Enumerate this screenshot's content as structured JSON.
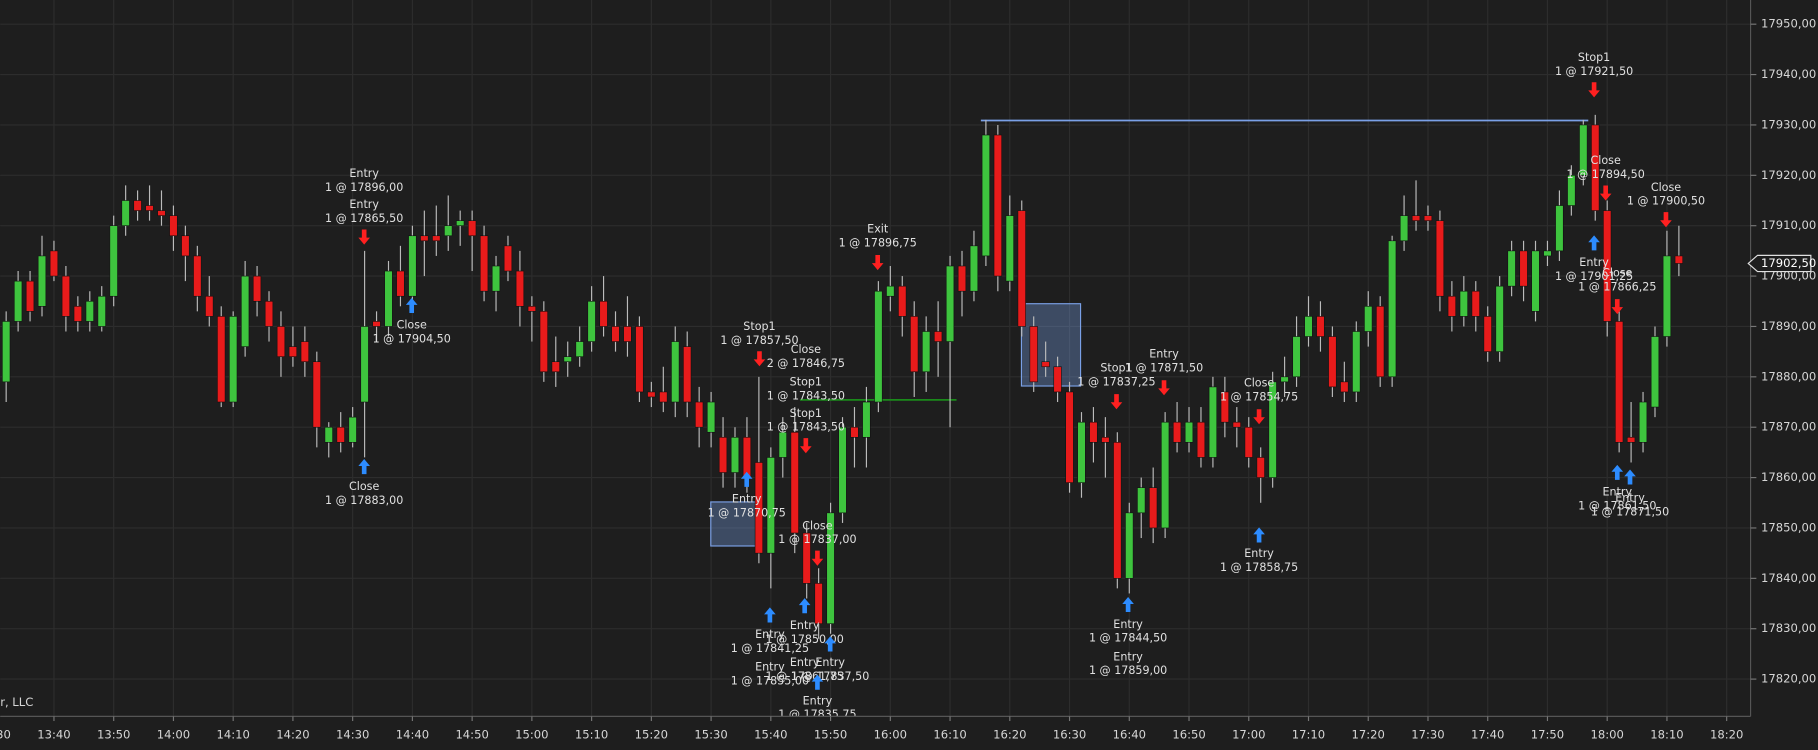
{
  "chart_data": {
    "type": "candlestick",
    "up_color": "#3ec43e",
    "down_color": "#e81b1b",
    "grid": true,
    "ylim": [
      17812.6,
      17954.8
    ],
    "yticks": [
      {
        "value": 17820,
        "label": "17820,00"
      },
      {
        "value": 17830,
        "label": "17830,00"
      },
      {
        "value": 17840,
        "label": "17840,00"
      },
      {
        "value": 17850,
        "label": "17850,00"
      },
      {
        "value": 17860,
        "label": "17860,00"
      },
      {
        "value": 17870,
        "label": "17870,00"
      },
      {
        "value": 17880,
        "label": "17880,00"
      },
      {
        "value": 17890,
        "label": "17890,00"
      },
      {
        "value": 17900,
        "label": "17900,00"
      },
      {
        "value": 17910,
        "label": "17910,00"
      },
      {
        "value": 17920,
        "label": "17920,00"
      },
      {
        "value": 17930,
        "label": "17930,00"
      },
      {
        "value": 17940,
        "label": "17940,00"
      },
      {
        "value": 17950,
        "label": "17950,00"
      }
    ],
    "xlim": [
      "13:31",
      "18:24"
    ],
    "xticks": [
      "13:30",
      "13:40",
      "13:50",
      "14:00",
      "14:10",
      "14:20",
      "14:30",
      "14:40",
      "14:50",
      "15:00",
      "15:10",
      "15:20",
      "15:30",
      "15:40",
      "15:50",
      "16:00",
      "16:10",
      "16:20",
      "16:30",
      "16:40",
      "16:50",
      "17:00",
      "17:10",
      "17:20",
      "17:30",
      "17:40",
      "17:50",
      "18:00",
      "18:10",
      "18:20"
    ],
    "x": [
      "13:32",
      "13:34",
      "13:36",
      "13:38",
      "13:40",
      "13:42",
      "13:44",
      "13:46",
      "13:48",
      "13:50",
      "13:52",
      "13:54",
      "13:56",
      "13:58",
      "14:00",
      "14:02",
      "14:04",
      "14:06",
      "14:08",
      "14:10",
      "14:12",
      "14:14",
      "14:16",
      "14:18",
      "14:20",
      "14:22",
      "14:24",
      "14:26",
      "14:28",
      "14:30",
      "14:32",
      "14:34",
      "14:36",
      "14:38",
      "14:40",
      "14:42",
      "14:44",
      "14:46",
      "14:48",
      "14:50",
      "14:52",
      "14:54",
      "14:56",
      "14:58",
      "15:00",
      "15:02",
      "15:04",
      "15:06",
      "15:08",
      "15:10",
      "15:12",
      "15:14",
      "15:16",
      "15:18",
      "15:20",
      "15:22",
      "15:24",
      "15:26",
      "15:28",
      "15:30",
      "15:32",
      "15:34",
      "15:36",
      "15:38",
      "15:40",
      "15:42",
      "15:44",
      "15:46",
      "15:48",
      "15:50",
      "15:52",
      "15:54",
      "15:56",
      "15:58",
      "16:00",
      "16:02",
      "16:04",
      "16:06",
      "16:08",
      "16:10",
      "16:12",
      "16:14",
      "16:16",
      "16:18",
      "16:20",
      "16:22",
      "16:24",
      "16:26",
      "16:28",
      "16:30",
      "16:32",
      "16:34",
      "16:36",
      "16:38",
      "16:40",
      "16:42",
      "16:44",
      "16:46",
      "16:48",
      "16:50",
      "16:52",
      "16:54",
      "16:56",
      "16:58",
      "17:00",
      "17:02",
      "17:04",
      "17:06",
      "17:08",
      "17:10",
      "17:12",
      "17:14",
      "17:16",
      "17:18",
      "17:20",
      "17:22",
      "17:24",
      "17:26",
      "17:28",
      "17:30",
      "17:32",
      "17:34",
      "17:36",
      "17:38",
      "17:40",
      "17:42",
      "17:44",
      "17:46",
      "17:48",
      "17:50",
      "17:52",
      "17:54",
      "17:56",
      "17:58",
      "18:00",
      "18:02",
      "18:04",
      "18:06",
      "18:08",
      "18:10",
      "18:12"
    ],
    "ohlc": [
      [
        17879,
        17893,
        17875,
        17891
      ],
      [
        17891,
        17901,
        17889,
        17899
      ],
      [
        17899,
        17901,
        17891,
        17893
      ],
      [
        17894,
        17908,
        17892,
        17904
      ],
      [
        17905,
        17907,
        17899,
        17900
      ],
      [
        17900,
        17902,
        17889,
        17892
      ],
      [
        17894,
        17896,
        17889,
        17891
      ],
      [
        17891,
        17897,
        17889,
        17895
      ],
      [
        17890,
        17898,
        17889,
        17896
      ],
      [
        17896,
        17912,
        17894,
        17910
      ],
      [
        17910,
        17918,
        17908,
        17915
      ],
      [
        17915,
        17917,
        17911,
        17913
      ],
      [
        17914,
        17918,
        17911,
        17913
      ],
      [
        17913,
        17917,
        17910,
        17912
      ],
      [
        17912,
        17914,
        17905,
        17908
      ],
      [
        17908,
        17910,
        17899,
        17904
      ],
      [
        17904,
        17906,
        17893,
        17896
      ],
      [
        17896,
        17900,
        17890,
        17892
      ],
      [
        17892,
        17894,
        17874,
        17875
      ],
      [
        17875,
        17893,
        17874,
        17892
      ],
      [
        17886,
        17903,
        17884,
        17900
      ],
      [
        17900,
        17902,
        17892,
        17895
      ],
      [
        17895,
        17897,
        17887,
        17890
      ],
      [
        17890,
        17893,
        17880,
        17884
      ],
      [
        17886,
        17890,
        17882,
        17884
      ],
      [
        17887,
        17890,
        17880,
        17883
      ],
      [
        17883,
        17885,
        17866,
        17870
      ],
      [
        17867,
        17871,
        17864,
        17870
      ],
      [
        17870,
        17873,
        17865,
        17867
      ],
      [
        17867,
        17874,
        17866,
        17872
      ],
      [
        17875,
        17905,
        17864,
        17890
      ],
      [
        17891,
        17893,
        17887,
        17890
      ],
      [
        17890,
        17903,
        17888,
        17901
      ],
      [
        17901,
        17906,
        17894,
        17896
      ],
      [
        17896,
        17910,
        17894,
        17908
      ],
      [
        17908,
        17913,
        17900,
        17907
      ],
      [
        17908,
        17914,
        17904,
        17907
      ],
      [
        17908,
        17916,
        17905,
        17910
      ],
      [
        17910,
        17913,
        17906,
        17911
      ],
      [
        17911,
        17913,
        17901,
        17908
      ],
      [
        17908,
        17910,
        17895,
        17897
      ],
      [
        17897,
        17904,
        17893,
        17902
      ],
      [
        17906,
        17908,
        17899,
        17901
      ],
      [
        17901,
        17905,
        17890,
        17894
      ],
      [
        17894,
        17896,
        17887,
        17893
      ],
      [
        17893,
        17895,
        17879,
        17881
      ],
      [
        17883,
        17888,
        17878,
        17881
      ],
      [
        17883,
        17887,
        17880,
        17884
      ],
      [
        17884,
        17890,
        17882,
        17887
      ],
      [
        17887,
        17898,
        17885,
        17895
      ],
      [
        17895,
        17900,
        17888,
        17890
      ],
      [
        17890,
        17893,
        17885,
        17887
      ],
      [
        17890,
        17896,
        17884,
        17887
      ],
      [
        17890,
        17892,
        17875,
        17877
      ],
      [
        17877,
        17879,
        17874,
        17876
      ],
      [
        17877,
        17882,
        17873,
        17875
      ],
      [
        17875,
        17890,
        17872,
        17887
      ],
      [
        17886,
        17889,
        17872,
        17875
      ],
      [
        17875,
        17878,
        17866,
        17870
      ],
      [
        17869,
        17877,
        17866,
        17875
      ],
      [
        17868,
        17872,
        17858,
        17861
      ],
      [
        17861,
        17870,
        17858,
        17868
      ],
      [
        17868,
        17872,
        17857,
        17860
      ],
      [
        17863,
        17880,
        17843,
        17845
      ],
      [
        17845,
        17866,
        17838,
        17864
      ],
      [
        17864,
        17872,
        17860,
        17869
      ],
      [
        17869,
        17874,
        17845,
        17849
      ],
      [
        17849,
        17851,
        17836,
        17839
      ],
      [
        17839,
        17842,
        17828,
        17831
      ],
      [
        17831,
        17855,
        17829,
        17853
      ],
      [
        17853,
        17872,
        17851,
        17870
      ],
      [
        17870,
        17874,
        17862,
        17868
      ],
      [
        17868,
        17878,
        17862,
        17875
      ],
      [
        17875,
        17899,
        17873,
        17897
      ],
      [
        17896,
        17902,
        17893,
        17898
      ],
      [
        17898,
        17900,
        17888,
        17892
      ],
      [
        17892,
        17895,
        17876,
        17881
      ],
      [
        17881,
        17892,
        17877,
        17889
      ],
      [
        17889,
        17895,
        17880,
        17887
      ],
      [
        17887,
        17904,
        17870,
        17902
      ],
      [
        17902,
        17905,
        17892,
        17897
      ],
      [
        17897,
        17909,
        17895,
        17906
      ],
      [
        17904,
        17931,
        17902,
        17928
      ],
      [
        17928,
        17930,
        17897,
        17900
      ],
      [
        17899,
        17916,
        17897,
        17912
      ],
      [
        17913,
        17915,
        17888,
        17890
      ],
      [
        17890,
        17892,
        17877,
        17879
      ],
      [
        17883,
        17887,
        17880,
        17882
      ],
      [
        17882,
        17884,
        17875,
        17877
      ],
      [
        17877,
        17879,
        17857,
        17859
      ],
      [
        17859,
        17873,
        17856,
        17871
      ],
      [
        17871,
        17874,
        17863,
        17867
      ],
      [
        17868,
        17872,
        17860,
        17867
      ],
      [
        17867,
        17869,
        17838,
        17840
      ],
      [
        17840,
        17855,
        17837,
        17853
      ],
      [
        17853,
        17860,
        17848,
        17858
      ],
      [
        17858,
        17862,
        17847,
        17850
      ],
      [
        17850,
        17873,
        17848,
        17871
      ],
      [
        17871,
        17875,
        17865,
        17867
      ],
      [
        17867,
        17874,
        17865,
        17871
      ],
      [
        17871,
        17874,
        17862,
        17864
      ],
      [
        17864,
        17880,
        17862,
        17878
      ],
      [
        17877,
        17880,
        17868,
        17871
      ],
      [
        17871,
        17874,
        17866,
        17870
      ],
      [
        17870,
        17872,
        17862,
        17864
      ],
      [
        17864,
        17866,
        17855,
        17860
      ],
      [
        17860,
        17881,
        17858,
        17879
      ],
      [
        17879,
        17884,
        17876,
        17880
      ],
      [
        17880,
        17892,
        17878,
        17888
      ],
      [
        17888,
        17896,
        17886,
        17892
      ],
      [
        17892,
        17895,
        17885,
        17888
      ],
      [
        17888,
        17890,
        17876,
        17878
      ],
      [
        17879,
        17883,
        17875,
        17877
      ],
      [
        17877,
        17891,
        17875,
        17889
      ],
      [
        17889,
        17897,
        17886,
        17894
      ],
      [
        17894,
        17896,
        17878,
        17880
      ],
      [
        17880,
        17908,
        17878,
        17907
      ],
      [
        17907,
        17916,
        17905,
        17912
      ],
      [
        17912,
        17919,
        17909,
        17911
      ],
      [
        17912,
        17914,
        17909,
        17911
      ],
      [
        17911,
        17913,
        17893,
        17896
      ],
      [
        17896,
        17899,
        17889,
        17892
      ],
      [
        17892,
        17900,
        17890,
        17897
      ],
      [
        17897,
        17899,
        17889,
        17892
      ],
      [
        17892,
        17894,
        17883,
        17885
      ],
      [
        17885,
        17900,
        17883,
        17898
      ],
      [
        17898,
        17907,
        17896,
        17905
      ],
      [
        17905,
        17907,
        17895,
        17898
      ],
      [
        17893,
        17907,
        17891,
        17905
      ],
      [
        17904,
        17907,
        17902,
        17905
      ],
      [
        17905,
        17917,
        17903,
        17914
      ],
      [
        17914,
        17922,
        17912,
        17920
      ],
      [
        17920,
        17931,
        17918,
        17930
      ],
      [
        17930,
        17932,
        17911,
        17913
      ],
      [
        17913,
        17915,
        17888,
        17891
      ],
      [
        17891,
        17893,
        17865,
        17867
      ],
      [
        17868,
        17875,
        17863,
        17867
      ],
      [
        17867,
        17877,
        17865,
        17875
      ],
      [
        17874,
        17890,
        17872,
        17888
      ],
      [
        17888,
        17909,
        17886,
        17904
      ],
      [
        17904,
        17910,
        17900,
        17902.5
      ]
    ],
    "price_marker": {
      "value": 17902.5,
      "label": "17902,50"
    },
    "annotations": [
      [
        "Entry",
        "1 @ 17896,00"
      ],
      [
        "Entry",
        "1 @ 17865,50"
      ],
      [
        "Close",
        "1 @ 17883,00"
      ],
      [
        "Close",
        "1 @ 17904,50"
      ],
      [
        "Stop1",
        "1 @ 17857,50"
      ],
      [
        "Close",
        "2 @ 17846,75"
      ],
      [
        "Stop1",
        "1 @ 17843,50"
      ],
      [
        "Stop1",
        "1 @ 17843,50"
      ],
      [
        "Entry",
        "1 @ 17870,75"
      ],
      [
        "Close",
        "1 @ 17837,00"
      ],
      [
        "Entry",
        "1 @ 17841,25"
      ],
      [
        "Entry",
        "1 @ 17850,00"
      ],
      [
        "Entry",
        "1 @ 17855,00"
      ],
      [
        "Entry",
        "1 @ 17861,75"
      ],
      [
        "Entry",
        "1 @ 17837,50"
      ],
      [
        "Entry",
        "1 @ 17835,75"
      ],
      [
        "Exit",
        "1 @ 17896,75"
      ],
      [
        "Stop1",
        "1 @ 17837,25"
      ],
      [
        "Entry",
        "1 @ 17871,50"
      ],
      [
        "Close",
        "1 @ 17854,75"
      ],
      [
        "Entry",
        "1 @ 17858,75"
      ],
      [
        "Entry",
        "1 @ 17844,50"
      ],
      [
        "Entry",
        "1 @ 17859,00"
      ],
      [
        "Stop1",
        "1 @ 17921,50"
      ],
      [
        "Close",
        "1 @ 17894,50"
      ],
      [
        "Close",
        "1 @ 17900,50"
      ],
      [
        "Entry",
        "1 @ 17901,25"
      ],
      [
        "Close",
        "1 @ 17866,25"
      ],
      [
        "Entry",
        "1 @ 17861,50"
      ],
      [
        "Entry",
        "1 @ 17871,50"
      ]
    ],
    "credit": "r, LLC"
  }
}
